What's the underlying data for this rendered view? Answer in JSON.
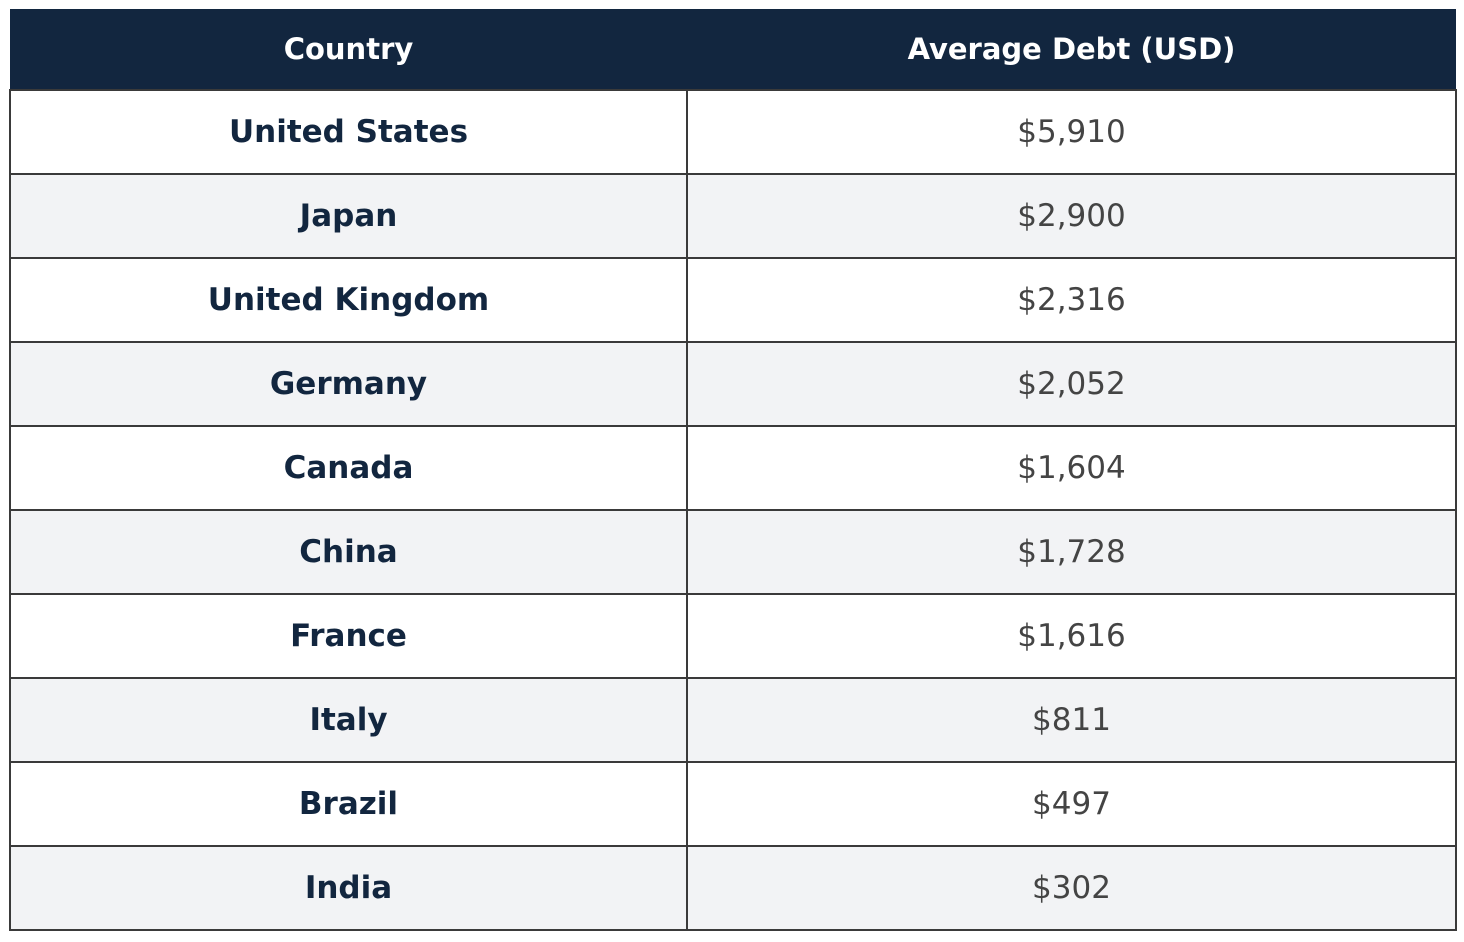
{
  "table": {
    "headers": {
      "country": "Country",
      "debt": "Average Debt (USD)"
    },
    "rows": [
      {
        "country": "United States",
        "debt": "$5,910"
      },
      {
        "country": "Japan",
        "debt": "$2,900"
      },
      {
        "country": "United Kingdom",
        "debt": "$2,316"
      },
      {
        "country": "Germany",
        "debt": "$2,052"
      },
      {
        "country": "Canada",
        "debt": "$1,604"
      },
      {
        "country": "China",
        "debt": "$1,728"
      },
      {
        "country": "France",
        "debt": "$1,616"
      },
      {
        "country": "Italy",
        "debt": "$811"
      },
      {
        "country": "Brazil",
        "debt": "$497"
      },
      {
        "country": "India",
        "debt": "$302"
      }
    ]
  },
  "colors": {
    "header_bg": "#12263f",
    "header_text": "#ffffff",
    "country_text": "#12263f",
    "debt_text": "#444444",
    "row_alt_bg": "#f2f3f5",
    "border": "#3a3a3a"
  }
}
